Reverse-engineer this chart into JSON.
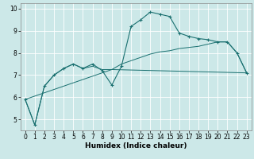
{
  "xlabel": "Humidex (Indice chaleur)",
  "background_color": "#cce8e8",
  "line_color": "#1a7070",
  "grid_color": "#ffffff",
  "xlim": [
    -0.5,
    23.5
  ],
  "ylim": [
    4.5,
    10.25
  ],
  "yticks": [
    5,
    6,
    7,
    8,
    9,
    10
  ],
  "xticks": [
    0,
    1,
    2,
    3,
    4,
    5,
    6,
    7,
    8,
    9,
    10,
    11,
    12,
    13,
    14,
    15,
    16,
    17,
    18,
    19,
    20,
    21,
    22,
    23
  ],
  "curve1_x": [
    0,
    1,
    2,
    3,
    4,
    5,
    6,
    7,
    8,
    9,
    10,
    11,
    12,
    13,
    14,
    15,
    16,
    17,
    18,
    19,
    20,
    21,
    22,
    23
  ],
  "curve1_y": [
    5.9,
    4.75,
    6.5,
    7.0,
    7.3,
    7.5,
    7.3,
    7.5,
    7.2,
    6.55,
    7.4,
    9.2,
    9.5,
    9.85,
    9.75,
    9.65,
    8.9,
    8.75,
    8.65,
    8.6,
    8.5,
    8.5,
    8.0,
    7.1
  ],
  "curve2_x": [
    0,
    1,
    2,
    3,
    4,
    5,
    6,
    7,
    8,
    9,
    10,
    11,
    12,
    13,
    14,
    15,
    16,
    17,
    18,
    19,
    20,
    21,
    22,
    23
  ],
  "curve2_y": [
    5.9,
    4.75,
    6.5,
    7.0,
    7.3,
    7.5,
    7.3,
    7.4,
    7.25,
    7.25,
    7.5,
    7.65,
    7.8,
    7.95,
    8.05,
    8.1,
    8.2,
    8.25,
    8.3,
    8.4,
    8.5,
    8.5,
    8.0,
    7.1
  ],
  "curve3_x": [
    0,
    9,
    23
  ],
  "curve3_y": [
    5.9,
    7.25,
    7.1
  ],
  "tick_fontsize": 5.5,
  "xlabel_fontsize": 6.5
}
